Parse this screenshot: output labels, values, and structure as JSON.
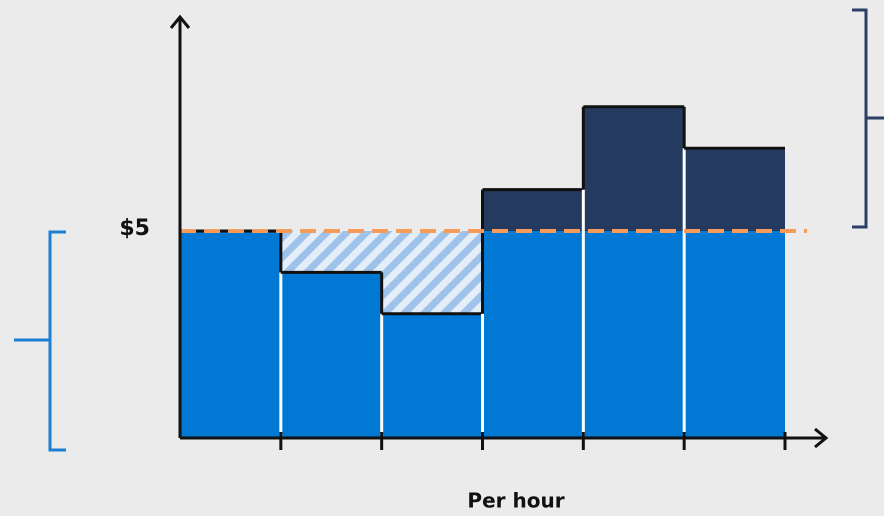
{
  "chart_data": {
    "type": "bar",
    "values": [
      5,
      4,
      3,
      6,
      8,
      7
    ],
    "ylim": [
      0,
      10
    ],
    "yticks": [
      {
        "value": 5,
        "label": "$5"
      }
    ],
    "x_label": "Per hour",
    "colors": {
      "covered": "#0078d4",
      "overage": "#243a5e",
      "unused": "#c7dbf3",
      "commitment": "#f79b5a"
    }
  }
}
